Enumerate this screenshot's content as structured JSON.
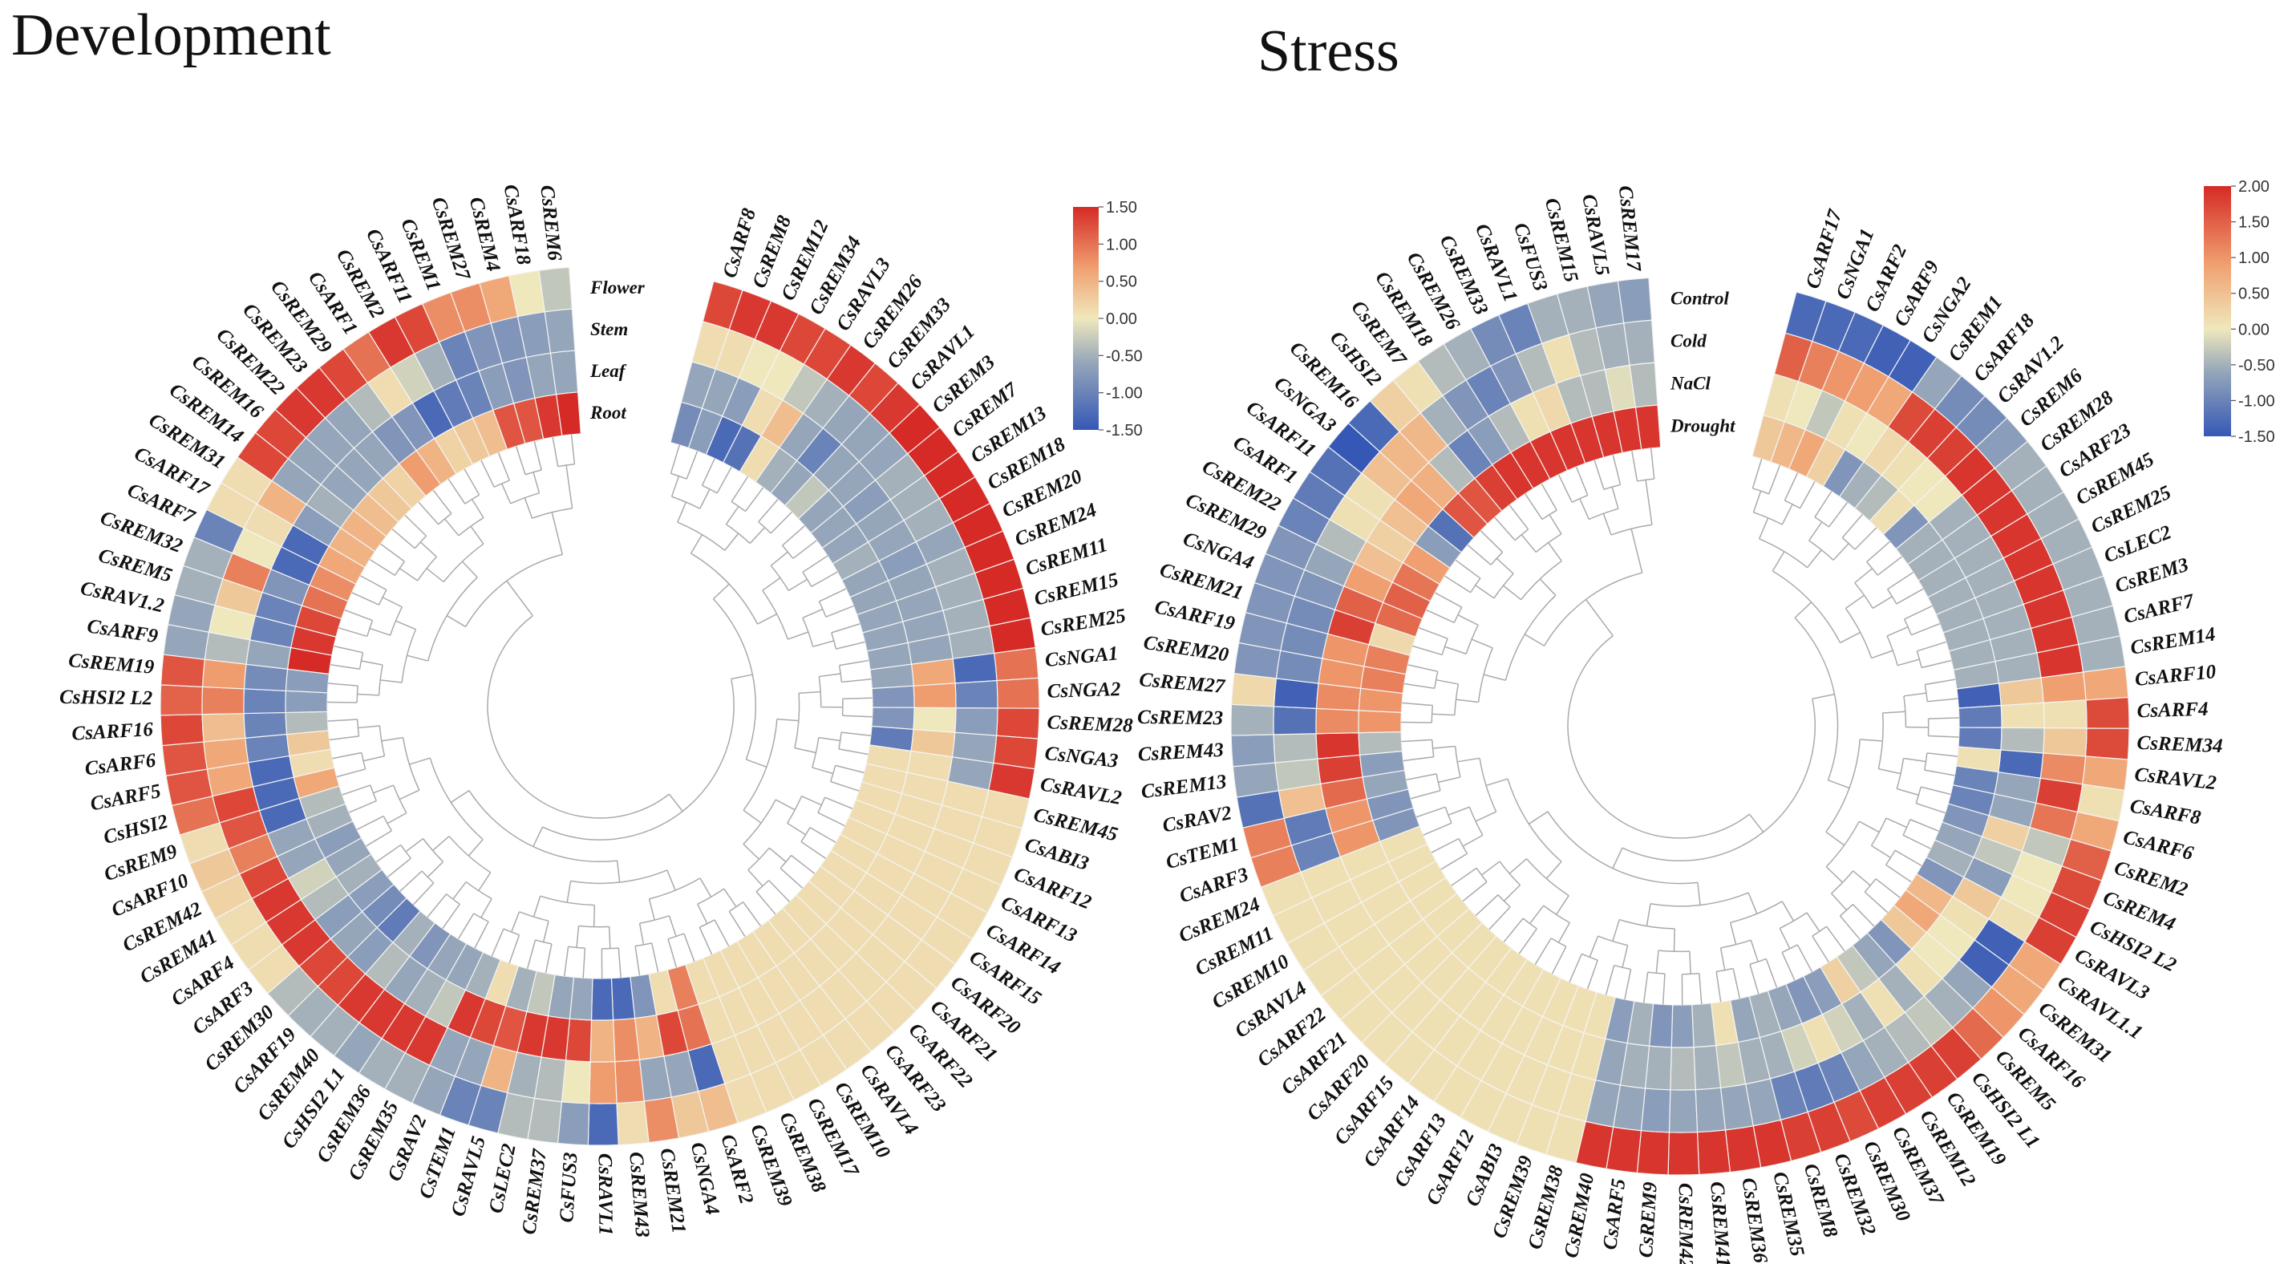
{
  "titles": {
    "development": "Development",
    "stress": "Stress"
  },
  "chart_data": [
    {
      "type": "heatmap",
      "layout": "circular",
      "title": "Development",
      "rows": [
        "Flower",
        "Stem",
        "Leaf",
        "Root"
      ],
      "colorbar": {
        "min": -1.5,
        "max": 1.5,
        "ticks": [
          "1.50",
          "1.00",
          "0.50",
          "0.00",
          "-0.50",
          "-1.00",
          "-1.50"
        ],
        "colors": [
          "#3558b6",
          "#95a6ba",
          "#efe8bc",
          "#f0a070",
          "#d52a26"
        ]
      },
      "genes": [
        "CsARF8",
        "CsREM8",
        "CsREM12",
        "CsREM34",
        "CsRAVL3",
        "CsREM26",
        "CsREM33",
        "CsRAVL1",
        "CsREM3",
        "CsREM7",
        "CsREM13",
        "CsREM18",
        "CsREM20",
        "CsREM24",
        "CsREM11",
        "CsREM15",
        "CsREM25",
        "CsNGA1",
        "CsNGA2",
        "CsREM28",
        "CsNGA3",
        "CsRAVL2",
        "CsREM45",
        "CsABI3",
        "CsARF12",
        "CsARF13",
        "CsARF14",
        "CsARF15",
        "CsARF20",
        "CsARF21",
        "CsARF22",
        "CsARF23",
        "CsRAVL4",
        "CsREM10",
        "CsREM17",
        "CsREM38",
        "CsREM39",
        "CsARF2",
        "CsNGA4",
        "CsREM21",
        "CsREM43",
        "CsRAVL1",
        "CsFUS3",
        "CsREM37",
        "CsLEC2",
        "CsRAVL5",
        "CsTEM1",
        "CsRAV2",
        "CsREM35",
        "CsREM36",
        "CsHSI2 L1",
        "CsREM40",
        "CsARF19",
        "CsREM30",
        "CsARF3",
        "CsARF4",
        "CsREM41",
        "CsREM42",
        "CsARF10",
        "CsREM9",
        "CsHSI2",
        "CsARF5",
        "CsARF6",
        "CsARF16",
        "CsHSI2 L2",
        "CsREM19",
        "CsARF9",
        "CsRAV1.2",
        "CsREM5",
        "CsREM32",
        "CsARF7",
        "CsARF17",
        "CsREM31",
        "CsREM14",
        "CsREM16",
        "CsREM22",
        "CsREM23",
        "CsREM29",
        "CsARF1",
        "CsREM2",
        "CsARF11",
        "CsREM1",
        "CsREM27",
        "CsREM4",
        "CsARF18",
        "CsREM6"
      ],
      "values": [
        [
          1.3,
          0.1,
          -0.6,
          -0.9
        ],
        [
          1.4,
          0.1,
          -0.6,
          -0.7
        ],
        [
          1.4,
          0,
          -0.7,
          -1.3
        ],
        [
          1.3,
          0,
          0.1,
          -1.2
        ],
        [
          1.3,
          -0.3,
          0.4,
          0.1
        ],
        [
          1.4,
          -0.5,
          -0.6,
          -0.5
        ],
        [
          1.3,
          -0.6,
          -1.0,
          -0.6
        ],
        [
          1.4,
          -0.6,
          -0.6,
          -0.3
        ],
        [
          1.5,
          -0.6,
          -0.6,
          -0.6
        ],
        [
          1.5,
          -0.5,
          -0.7,
          -0.6
        ],
        [
          1.5,
          -0.5,
          -0.6,
          -0.6
        ],
        [
          1.5,
          -0.5,
          -0.6,
          -0.5
        ],
        [
          1.5,
          -0.6,
          -0.7,
          -0.6
        ],
        [
          1.5,
          -0.5,
          -0.6,
          -0.6
        ],
        [
          1.5,
          -0.5,
          -0.6,
          -0.6
        ],
        [
          1.5,
          -0.5,
          -0.6,
          -0.6
        ],
        [
          1.5,
          -0.5,
          -0.6,
          -0.6
        ],
        [
          1.0,
          -1.3,
          0.6,
          -0.6
        ],
        [
          1.0,
          -1.0,
          0.7,
          -0.8
        ],
        [
          1.3,
          -0.7,
          0.0,
          -0.8
        ],
        [
          1.3,
          -0.6,
          0.3,
          -1.1
        ],
        [
          1.4,
          -0.6,
          0.1,
          0.1
        ],
        [
          0.1,
          0.1,
          0.1,
          0.1
        ],
        [
          0.1,
          0.1,
          0.1,
          0.1
        ],
        [
          0.1,
          0.1,
          0.1,
          0.1
        ],
        [
          0.1,
          0.1,
          0.1,
          0.1
        ],
        [
          0.1,
          0.1,
          0.1,
          0.1
        ],
        [
          0.1,
          0.1,
          0.1,
          0.1
        ],
        [
          0.1,
          0.1,
          0.1,
          0.1
        ],
        [
          0.1,
          0.1,
          0.1,
          0.1
        ],
        [
          0.1,
          0.1,
          0.1,
          0.1
        ],
        [
          0.1,
          0.1,
          0.1,
          0.1
        ],
        [
          0.1,
          0.1,
          0.1,
          0.1
        ],
        [
          0.1,
          0.1,
          0.1,
          0.1
        ],
        [
          0.1,
          0.1,
          0.1,
          0.1
        ],
        [
          0.1,
          0.1,
          0.1,
          0.1
        ],
        [
          0.1,
          0.1,
          0.1,
          0.1
        ],
        [
          0.4,
          -1.3,
          1.0,
          0.9
        ],
        [
          0.3,
          -0.6,
          1.3,
          0.1
        ],
        [
          0.8,
          -0.6,
          0.5,
          -0.8
        ],
        [
          0.1,
          0.8,
          0.8,
          -1.3
        ],
        [
          -1.3,
          0.7,
          0.5,
          -1.3
        ],
        [
          -0.7,
          0.0,
          1.3,
          -0.6
        ],
        [
          -0.4,
          -0.4,
          1.4,
          -0.6
        ],
        [
          -0.4,
          -0.5,
          1.4,
          -0.3
        ],
        [
          -1.0,
          0.5,
          1.2,
          -0.5
        ],
        [
          -1.0,
          -0.6,
          1.3,
          0.1
        ],
        [
          -0.6,
          -0.6,
          1.4,
          -0.5
        ],
        [
          -0.5,
          1.4,
          -0.3,
          -0.6
        ],
        [
          -0.5,
          1.4,
          -0.5,
          -0.6
        ],
        [
          -0.6,
          1.4,
          -0.6,
          -0.8
        ],
        [
          -0.5,
          1.4,
          -0.4,
          -0.5
        ],
        [
          -0.5,
          1.3,
          -0.7,
          -1.1
        ],
        [
          -0.4,
          1.3,
          -0.6,
          -0.9
        ],
        [
          0.1,
          1.4,
          -0.7,
          -0.7
        ],
        [
          0.1,
          1.4,
          -0.4,
          -0.5
        ],
        [
          0.1,
          1.4,
          -0.2,
          -0.6
        ],
        [
          0.2,
          1.3,
          -0.6,
          -0.7
        ],
        [
          0.3,
          0.9,
          -0.6,
          -0.5
        ],
        [
          0.1,
          1.2,
          -1.3,
          -0.4
        ],
        [
          1.0,
          1.3,
          -1.3,
          0.6
        ],
        [
          1.2,
          0.6,
          -1.3,
          0.1
        ],
        [
          1.2,
          0.6,
          -1.0,
          0.3
        ],
        [
          1.3,
          0.4,
          -1.0,
          -0.4
        ],
        [
          1.1,
          0.9,
          -1.0,
          -0.7
        ],
        [
          1.2,
          0.7,
          -0.9,
          -0.7
        ],
        [
          -0.6,
          -0.4,
          -0.6,
          1.5
        ],
        [
          -0.6,
          0.0,
          -1.0,
          1.4
        ],
        [
          -0.5,
          0.3,
          -1.0,
          1.3
        ],
        [
          -0.5,
          0.9,
          -0.8,
          1.0
        ],
        [
          -1.0,
          0.0,
          -1.3,
          0.8
        ],
        [
          0.1,
          0.1,
          -1.3,
          0.6
        ],
        [
          0.1,
          0.5,
          -0.7,
          0.5
        ],
        [
          1.3,
          -0.6,
          -0.5,
          0.5
        ],
        [
          1.3,
          -0.6,
          -0.6,
          0.4
        ],
        [
          1.4,
          -0.6,
          -0.6,
          0.3
        ],
        [
          1.4,
          -0.6,
          -0.6,
          0.2
        ],
        [
          1.3,
          -0.4,
          -0.8,
          0.7
        ],
        [
          1.0,
          0.1,
          -0.8,
          0.5
        ],
        [
          1.4,
          -0.2,
          -1.3,
          0.2
        ],
        [
          1.3,
          -0.5,
          -1.1,
          0.3
        ],
        [
          0.8,
          -1.0,
          -1.0,
          0.4
        ],
        [
          0.8,
          -0.8,
          -0.7,
          1.2
        ],
        [
          0.6,
          -0.8,
          -0.8,
          1.2
        ],
        [
          0.0,
          -0.7,
          -0.6,
          1.4
        ],
        [
          -0.3,
          -0.6,
          -0.6,
          1.5
        ]
      ]
    },
    {
      "type": "heatmap",
      "layout": "circular",
      "title": "Stress",
      "rows": [
        "Control",
        "Cold",
        "NaCl",
        "Drought"
      ],
      "colorbar": {
        "min": -1.5,
        "max": 2.0,
        "ticks": [
          "2.00",
          "1.50",
          "1.00",
          "0.50",
          "0.00",
          "-0.50",
          "-1.00",
          "-1.50"
        ],
        "colors": [
          "#3558b6",
          "#95a6ba",
          "#efe8bc",
          "#f0a070",
          "#d52a26"
        ]
      },
      "genes": [
        "CsARF17",
        "CsNGA1",
        "CsARF2",
        "CsARF9",
        "CsNGA2",
        "CsREM1",
        "CsARF18",
        "CsRAV1.2",
        "CsREM6",
        "CsREM28",
        "CsARF23",
        "CsREM45",
        "CsREM25",
        "CsLEC2",
        "CsREM3",
        "CsARF7",
        "CsREM14",
        "CsARF10",
        "CsARF4",
        "CsREM34",
        "CsRAVL2",
        "CsARF8",
        "CsARF6",
        "CsREM2",
        "CsREM4",
        "CsHSI2 L2",
        "CsRAVL3",
        "CsRAVL1.1",
        "CsREM31",
        "CsARF16",
        "CsREM5",
        "CsHSI2 L1",
        "CsREM19",
        "CsREM12",
        "CsREM37",
        "CsREM30",
        "CsREM32",
        "CsREM8",
        "CsREM35",
        "CsREM36",
        "CsREM41",
        "CsREM42",
        "CsREM9",
        "CsARF5",
        "CsREM40",
        "CsREM38",
        "CsREM39",
        "CsABI3",
        "CsARF12",
        "CsARF13",
        "CsARF14",
        "CsARF15",
        "CsARF20",
        "CsARF21",
        "CsARF22",
        "CsRAVL4",
        "CsREM10",
        "CsREM11",
        "CsREM24",
        "CsARF3",
        "CsTEM1",
        "CsRAV2",
        "CsREM13",
        "CsREM43",
        "CsREM23",
        "CsREM27",
        "CsREM20",
        "CsARF19",
        "CsREM21",
        "CsNGA4",
        "CsREM29",
        "CsREM22",
        "CsARF1",
        "CsARF11",
        "CsNGA3",
        "CsREM16",
        "CsHSI2",
        "CsREM7",
        "CsREM18",
        "CsREM26",
        "CsREM33",
        "CsRAVL1",
        "CsFUS3",
        "CsREM15",
        "CsRAVL5",
        "CsREM17"
      ],
      "values": [
        [
          -1.3,
          1.5,
          0.1,
          0.4
        ],
        [
          -1.3,
          1.2,
          0.0,
          0.6
        ],
        [
          -1.3,
          1.0,
          -0.3,
          0.8
        ],
        [
          -1.4,
          0.9,
          0.1,
          0.3
        ],
        [
          -1.4,
          0.8,
          0.0,
          -0.8
        ],
        [
          -0.6,
          1.7,
          0.2,
          -0.5
        ],
        [
          -0.9,
          1.8,
          0.1,
          -0.4
        ],
        [
          -0.9,
          1.8,
          0.0,
          0.1
        ],
        [
          -0.7,
          1.9,
          0.0,
          -0.8
        ],
        [
          -0.5,
          1.9,
          -0.5,
          -0.5
        ],
        [
          -0.5,
          1.9,
          -0.5,
          -0.5
        ],
        [
          -0.5,
          1.9,
          -0.5,
          -0.5
        ],
        [
          -0.5,
          1.9,
          -0.5,
          -0.5
        ],
        [
          -0.5,
          1.9,
          -0.5,
          -0.5
        ],
        [
          -0.5,
          1.9,
          -0.5,
          -0.5
        ],
        [
          -0.5,
          1.9,
          -0.5,
          -0.5
        ],
        [
          -0.5,
          1.9,
          -0.5,
          -0.5
        ],
        [
          0.8,
          0.9,
          0.4,
          -1.4
        ],
        [
          1.7,
          0.1,
          0.1,
          -1.1
        ],
        [
          1.7,
          0.4,
          -0.4,
          -1.1
        ],
        [
          0.8,
          1.1,
          -1.3,
          0.1
        ],
        [
          0.1,
          1.8,
          -0.6,
          -1.0
        ],
        [
          0.8,
          1.3,
          -0.6,
          -1.0
        ],
        [
          1.5,
          -0.3,
          0.3,
          -0.8
        ],
        [
          1.7,
          0.0,
          -0.3,
          -0.6
        ],
        [
          1.8,
          0.0,
          -0.7,
          -0.5
        ],
        [
          1.8,
          0.1,
          0.4,
          -0.8
        ],
        [
          0.8,
          -1.4,
          0.1,
          0.6
        ],
        [
          0.8,
          -1.4,
          0.0,
          0.8
        ],
        [
          1.0,
          -0.6,
          0.0,
          0.4
        ],
        [
          1.4,
          -0.5,
          0.1,
          -0.8
        ],
        [
          1.8,
          -0.3,
          -0.5,
          -0.6
        ],
        [
          1.8,
          -0.4,
          0.1,
          -0.3
        ],
        [
          1.8,
          -0.5,
          -0.5,
          0.3
        ],
        [
          1.8,
          -0.6,
          -0.2,
          -0.7
        ],
        [
          1.7,
          -1.0,
          0.1,
          -0.8
        ],
        [
          1.8,
          -1.1,
          -0.2,
          -0.6
        ],
        [
          1.8,
          -1.0,
          -0.5,
          -0.5
        ],
        [
          1.9,
          -0.6,
          -0.5,
          -0.6
        ],
        [
          1.9,
          -0.6,
          -0.3,
          0.1
        ],
        [
          1.9,
          -0.6,
          -0.5,
          -0.5
        ],
        [
          1.9,
          -0.6,
          -0.4,
          -0.7
        ],
        [
          1.9,
          -0.7,
          -0.5,
          -0.8
        ],
        [
          1.9,
          -0.6,
          -0.5,
          -0.5
        ],
        [
          1.9,
          -0.6,
          -0.6,
          -0.7
        ],
        [
          0.1,
          0.1,
          0.1,
          0.1
        ],
        [
          0.1,
          0.1,
          0.1,
          0.1
        ],
        [
          0.1,
          0.1,
          0.1,
          0.1
        ],
        [
          0.1,
          0.1,
          0.1,
          0.1
        ],
        [
          0.1,
          0.1,
          0.1,
          0.1
        ],
        [
          0.1,
          0.1,
          0.1,
          0.1
        ],
        [
          0.1,
          0.1,
          0.1,
          0.1
        ],
        [
          0.1,
          0.1,
          0.1,
          0.1
        ],
        [
          0.1,
          0.1,
          0.1,
          0.1
        ],
        [
          0.1,
          0.1,
          0.1,
          0.1
        ],
        [
          0.1,
          0.1,
          0.1,
          0.1
        ],
        [
          0.1,
          0.1,
          0.1,
          0.1
        ],
        [
          0.1,
          0.1,
          0.1,
          0.1
        ],
        [
          0.1,
          0.1,
          0.1,
          0.1
        ],
        [
          1.2,
          -1.0,
          1.0,
          -0.8
        ],
        [
          1.2,
          -1.1,
          1.0,
          -0.8
        ],
        [
          -1.2,
          0.5,
          1.4,
          -0.6
        ],
        [
          -0.6,
          -0.3,
          1.8,
          -0.7
        ],
        [
          -0.7,
          -0.4,
          1.9,
          -0.4
        ],
        [
          -0.5,
          -1.2,
          1.1,
          1.0
        ],
        [
          0.2,
          -1.4,
          1.1,
          1.0
        ],
        [
          -0.8,
          -0.9,
          1.0,
          1.2
        ],
        [
          -0.8,
          -0.9,
          1.0,
          1.2
        ],
        [
          -0.8,
          -0.9,
          1.8,
          0.2
        ],
        [
          -0.8,
          -0.8,
          1.5,
          1.4
        ],
        [
          -0.8,
          -0.6,
          0.9,
          1.5
        ],
        [
          -1.0,
          -0.4,
          0.5,
          1.3
        ],
        [
          -1.1,
          0.1,
          0.3,
          0.9
        ],
        [
          -1.2,
          0.1,
          0.5,
          -0.7
        ],
        [
          -1.5,
          0.5,
          0.8,
          -1.2
        ],
        [
          -1.3,
          0.6,
          0.7,
          1.6
        ],
        [
          0.3,
          0.6,
          -0.4,
          1.6
        ],
        [
          0.1,
          -0.5,
          -1.0,
          1.8
        ],
        [
          -0.4,
          -0.8,
          -0.7,
          1.9
        ],
        [
          -0.5,
          -1.0,
          -0.4,
          1.9
        ],
        [
          -0.9,
          -0.8,
          0.1,
          1.9
        ],
        [
          -1.0,
          -0.4,
          0.2,
          1.9
        ],
        [
          -0.5,
          0.1,
          -0.4,
          1.9
        ],
        [
          -0.5,
          -0.4,
          -0.4,
          1.9
        ],
        [
          -0.6,
          -0.5,
          -0.1,
          1.9
        ],
        [
          -0.7,
          -0.5,
          -0.4,
          1.9
        ]
      ]
    }
  ]
}
